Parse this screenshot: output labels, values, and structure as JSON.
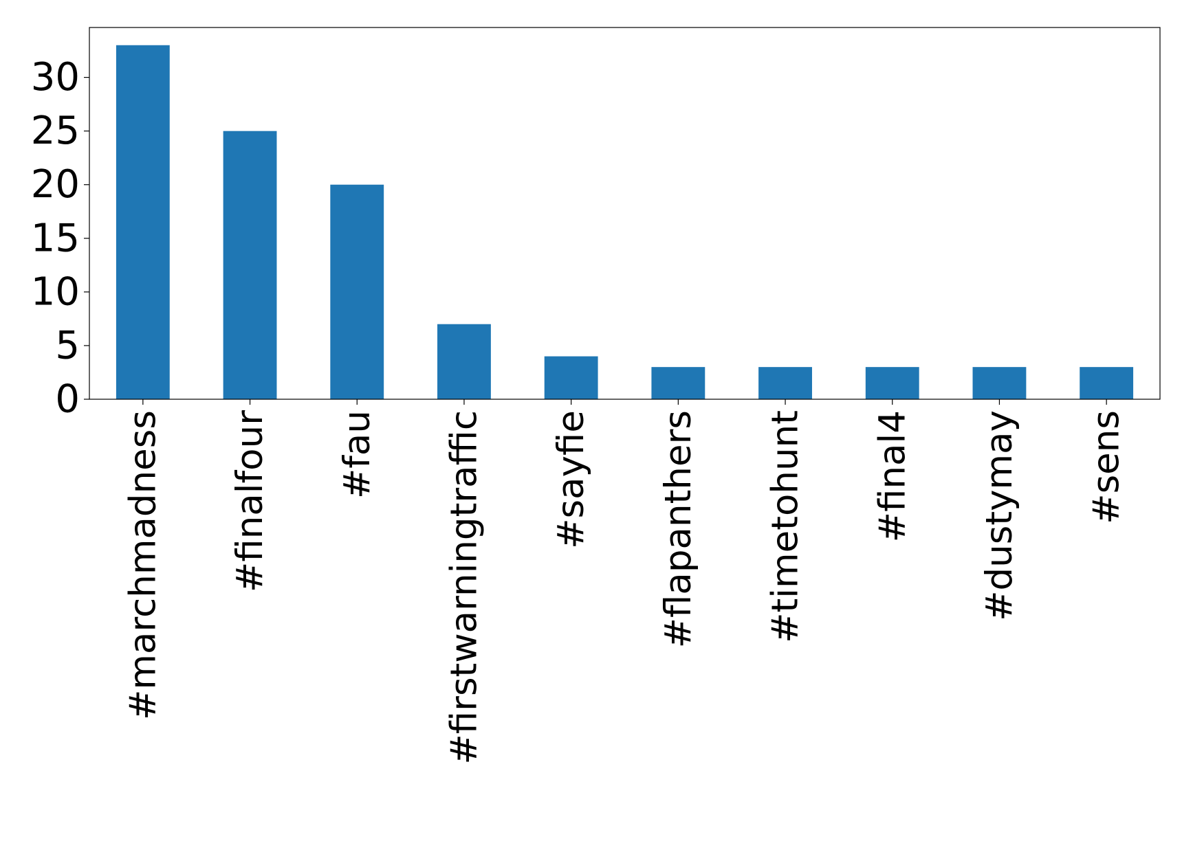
{
  "chart_data": {
    "type": "bar",
    "categories": [
      "#marchmadness",
      "#finalfour",
      "#fau",
      "#firstwarningtraffic",
      "#sayfie",
      "#flapanthers",
      "#timetohunt",
      "#final4",
      "#dustymay",
      "#sens"
    ],
    "values": [
      33,
      25,
      20,
      7,
      4,
      3,
      3,
      3,
      3,
      3
    ],
    "color": "#1f77b4",
    "ylim": [
      0,
      34.65
    ],
    "yticks": [
      0,
      5,
      10,
      15,
      20,
      25,
      30
    ],
    "grid": false
  }
}
